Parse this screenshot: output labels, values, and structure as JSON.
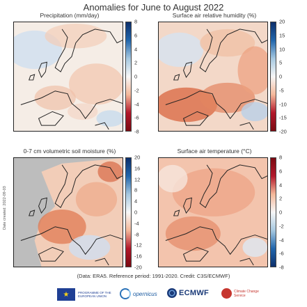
{
  "title": "Anomalies for June to August 2022",
  "panels": [
    {
      "title": "Precipitation (mm/day)",
      "colorbar": {
        "ticks": [
          "8",
          "6",
          "4",
          "2",
          "0",
          "-2",
          "-4",
          "-6",
          "-8"
        ],
        "top_color": "#0c2f6b",
        "bottom_color": "#7a0a12"
      }
    },
    {
      "title": "Surface air relative humidity (%)",
      "colorbar": {
        "ticks": [
          "20",
          "15",
          "10",
          "5",
          "0",
          "-5",
          "-10",
          "-15",
          "-20"
        ],
        "top_color": "#0c2f6b",
        "bottom_color": "#7a0a12"
      }
    },
    {
      "title": "0-7 cm volumetric soil moisture (%)",
      "colorbar": {
        "ticks": [
          "20",
          "16",
          "12",
          "8",
          "4",
          "0",
          "-4",
          "-8",
          "-12",
          "-16",
          "-20"
        ],
        "top_color": "#0c2f6b",
        "bottom_color": "#7a0a12"
      },
      "masked_color": "#bdbdbd"
    },
    {
      "title": "Surface air temperature (°C)",
      "colorbar": {
        "ticks": [
          "8",
          "6",
          "4",
          "2",
          "0",
          "-2",
          "-4",
          "-6",
          "-8"
        ],
        "top_color": "#7a0a12",
        "bottom_color": "#0c2f6b"
      }
    }
  ],
  "date_created": "Date created: 2022-09-03",
  "caption": "(Data: ERA5.  Reference period: 1991-2020.  Credit: C3S/ECMWF)",
  "logos": {
    "eu_text": "PROGRAMME OF THE EUROPEAN UNION",
    "copernicus": "opernicus",
    "ecmwf": "ECMWF",
    "c3s_text": "Climate Change Service"
  },
  "colors": {
    "negative_strong": "#b2182b",
    "negative_light": "#f4b89a",
    "neutral": "#f7f7f7",
    "positive_light": "#a6c8e0",
    "positive_strong": "#2166ac"
  }
}
